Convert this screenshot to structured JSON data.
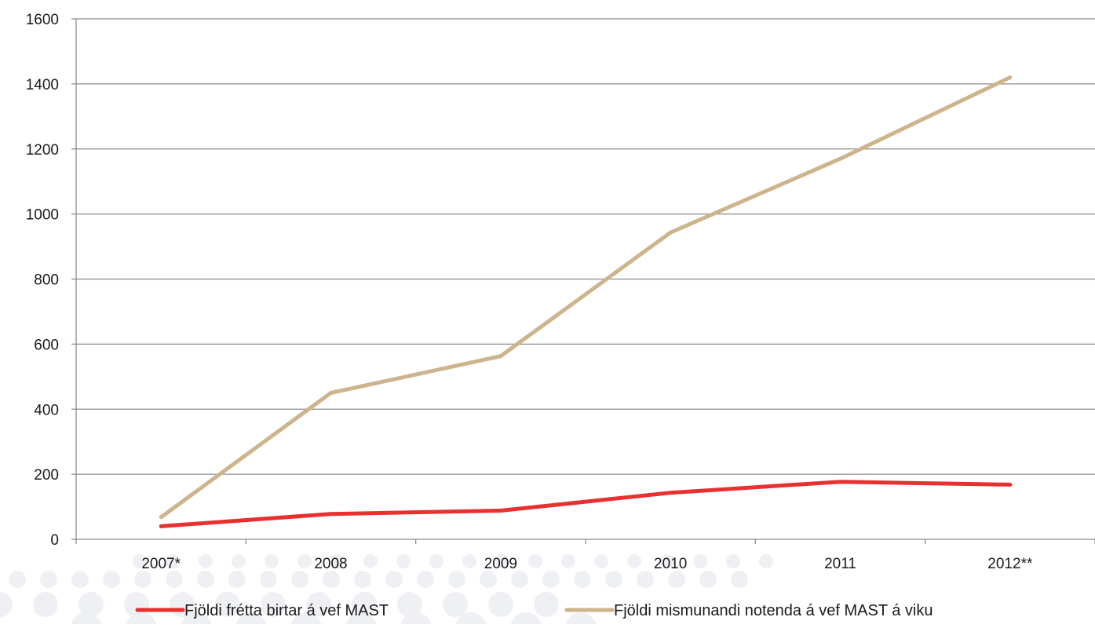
{
  "chart_data": {
    "type": "line",
    "title": "",
    "xlabel": "",
    "ylabel": "",
    "categories": [
      "2007*",
      "2008",
      "2009",
      "2010",
      "2011",
      "2012**"
    ],
    "ylim": [
      0,
      1600
    ],
    "yticks": [
      0,
      200,
      400,
      600,
      800,
      1000,
      1200,
      1400,
      1600
    ],
    "grid": true,
    "legend_position": "bottom",
    "series": [
      {
        "name": "Fjöldi frétta birtar á vef MAST",
        "color": "#e8312f",
        "values": [
          40,
          78,
          88,
          143,
          177,
          168
        ]
      },
      {
        "name": "Fjöldi mismunandi notenda á vef MAST á viku",
        "color": "#cdb48c",
        "values": [
          68,
          450,
          563,
          943,
          1170,
          1420
        ]
      }
    ]
  }
}
